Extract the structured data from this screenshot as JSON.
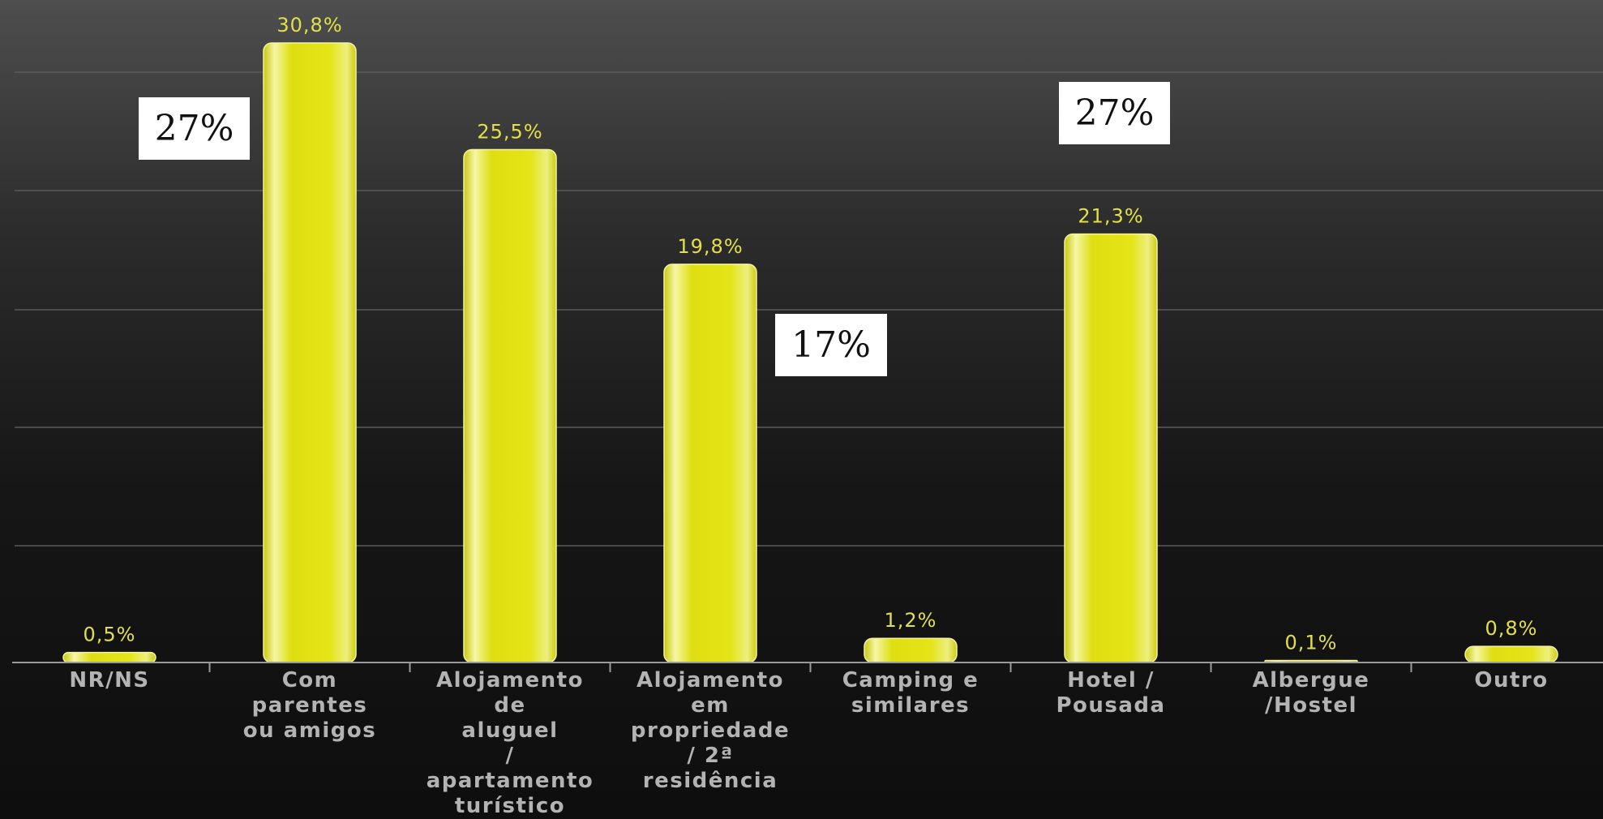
{
  "chart_data": {
    "type": "bar",
    "categories": [
      [
        "NR/NS"
      ],
      [
        "Com",
        "parentes",
        "ou amigos"
      ],
      [
        "Alojamento",
        "de",
        "aluguel",
        "/",
        "apartamento",
        "turístico"
      ],
      [
        "Alojamento",
        "em",
        "propriedade",
        "/ 2ª",
        "residência"
      ],
      [
        "Camping e",
        "similares"
      ],
      [
        "Hotel /",
        "Pousada"
      ],
      [
        "Albergue",
        "/Hostel"
      ],
      [
        "Outro"
      ]
    ],
    "values": [
      0.5,
      30.8,
      25.5,
      19.8,
      1.2,
      21.3,
      0.1,
      0.8
    ],
    "data_labels": [
      "0,5%",
      "30,8%",
      "25,5%",
      "19,8%",
      "1,2%",
      "21,3%",
      "0,1%",
      "0,8%"
    ],
    "title": "",
    "xlabel": "",
    "ylabel": "",
    "ylim": [
      0,
      30.8
    ],
    "grid": true,
    "bar_color": "#dede1a",
    "label_color": "#e2e04a",
    "background": "#1a1a1a"
  },
  "annotations": [
    "27%",
    "27%",
    "17%"
  ]
}
